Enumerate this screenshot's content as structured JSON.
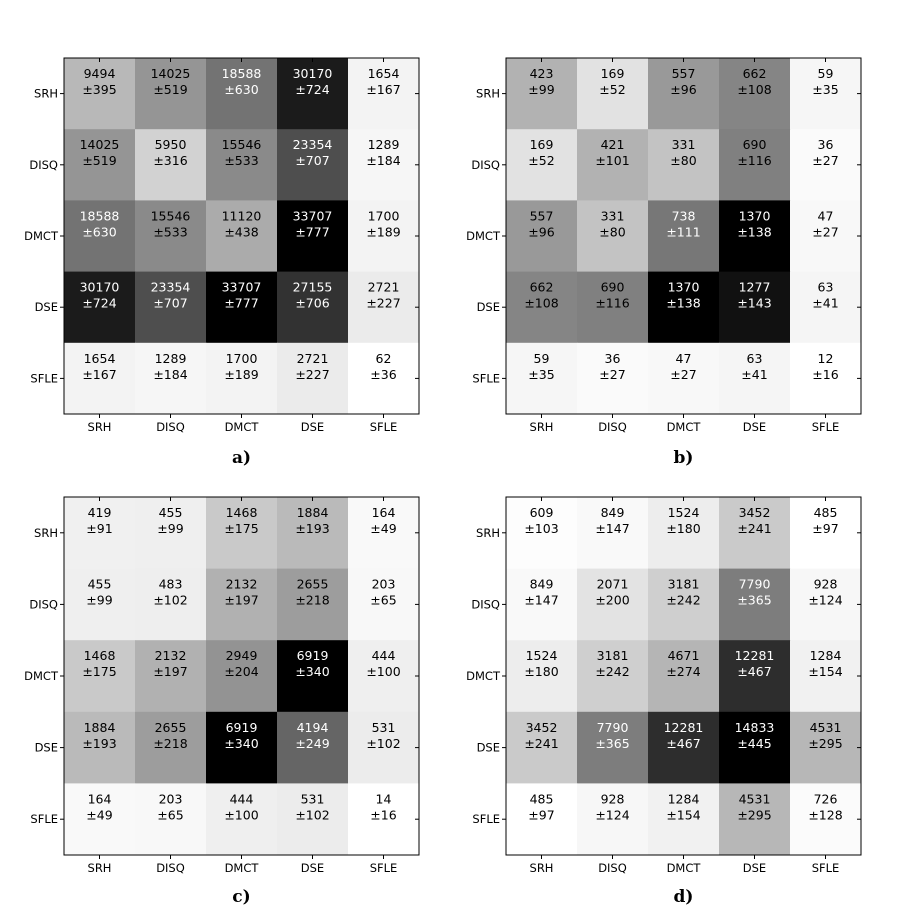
{
  "chart_data": [
    {
      "type": "heatmap",
      "panel_label": "a)",
      "rows": [
        "SRH",
        "DISQ",
        "DMCT",
        "DSE",
        "SFLE"
      ],
      "columns": [
        "SRH",
        "DISQ",
        "DMCT",
        "DSE",
        "SFLE"
      ],
      "values": [
        [
          9494,
          14025,
          18588,
          30170,
          1654
        ],
        [
          14025,
          5950,
          15546,
          23354,
          1289
        ],
        [
          18588,
          15546,
          11120,
          33707,
          1700
        ],
        [
          30170,
          23354,
          33707,
          27155,
          2721
        ],
        [
          1654,
          1289,
          1700,
          2721,
          62
        ]
      ],
      "errors": [
        [
          "±395",
          "±519",
          "±630",
          "±724",
          "±167"
        ],
        [
          "±519",
          "±316",
          "±533",
          "±707",
          "±184"
        ],
        [
          "±630",
          "±533",
          "±438",
          "±777",
          "±189"
        ],
        [
          "±724",
          "±707",
          "±777",
          "±706",
          "±227"
        ],
        [
          "±167",
          "±184",
          "±189",
          "±227",
          "±36"
        ]
      ],
      "colormap": "gray_r"
    },
    {
      "type": "heatmap",
      "panel_label": "b)",
      "rows": [
        "SRH",
        "DISQ",
        "DMCT",
        "DSE",
        "SFLE"
      ],
      "columns": [
        "SRH",
        "DISQ",
        "DMCT",
        "DSE",
        "SFLE"
      ],
      "values": [
        [
          423,
          169,
          557,
          662,
          59
        ],
        [
          169,
          421,
          331,
          690,
          36
        ],
        [
          557,
          331,
          738,
          1370,
          47
        ],
        [
          662,
          690,
          1370,
          1277,
          63
        ],
        [
          59,
          36,
          47,
          63,
          12
        ]
      ],
      "errors": [
        [
          "±99",
          "±52",
          "±96",
          "±108",
          "±35"
        ],
        [
          "±52",
          "±101",
          "±80",
          "±116",
          "±27"
        ],
        [
          "±96",
          "±80",
          "±111",
          "±138",
          "±27"
        ],
        [
          "±108",
          "±116",
          "±138",
          "±143",
          "±41"
        ],
        [
          "±35",
          "±27",
          "±27",
          "±41",
          "±16"
        ]
      ],
      "colormap": "gray_r"
    },
    {
      "type": "heatmap",
      "panel_label": "c)",
      "rows": [
        "SRH",
        "DISQ",
        "DMCT",
        "DSE",
        "SFLE"
      ],
      "columns": [
        "SRH",
        "DISQ",
        "DMCT",
        "DSE",
        "SFLE"
      ],
      "values": [
        [
          419,
          455,
          1468,
          1884,
          164
        ],
        [
          455,
          483,
          2132,
          2655,
          203
        ],
        [
          1468,
          2132,
          2949,
          6919,
          444
        ],
        [
          1884,
          2655,
          6919,
          4194,
          531
        ],
        [
          164,
          203,
          444,
          531,
          14
        ]
      ],
      "errors": [
        [
          "±91",
          "±99",
          "±175",
          "±193",
          "±49"
        ],
        [
          "±99",
          "±102",
          "±197",
          "±218",
          "±65"
        ],
        [
          "±175",
          "±197",
          "±204",
          "±340",
          "±100"
        ],
        [
          "±193",
          "±218",
          "±340",
          "±249",
          "±102"
        ],
        [
          "±49",
          "±65",
          "±100",
          "±102",
          "±16"
        ]
      ],
      "colormap": "gray_r"
    },
    {
      "type": "heatmap",
      "panel_label": "d)",
      "rows": [
        "SRH",
        "DISQ",
        "DMCT",
        "DSE",
        "SFLE"
      ],
      "columns": [
        "SRH",
        "DISQ",
        "DMCT",
        "DSE",
        "SFLE"
      ],
      "values": [
        [
          609,
          849,
          1524,
          3452,
          485
        ],
        [
          849,
          2071,
          3181,
          7790,
          928
        ],
        [
          1524,
          3181,
          4671,
          12281,
          1284
        ],
        [
          3452,
          7790,
          12281,
          14833,
          4531
        ],
        [
          485,
          928,
          1284,
          4531,
          726
        ]
      ],
      "errors": [
        [
          "±103",
          "±147",
          "±180",
          "±241",
          "±97"
        ],
        [
          "±147",
          "±200",
          "±242",
          "±365",
          "±124"
        ],
        [
          "±180",
          "±242",
          "±274",
          "±467",
          "±154"
        ],
        [
          "±241",
          "±365",
          "±467",
          "±445",
          "±295"
        ],
        [
          "±97",
          "±124",
          "±154",
          "±295",
          "±128"
        ]
      ],
      "colormap": "gray_r"
    }
  ]
}
